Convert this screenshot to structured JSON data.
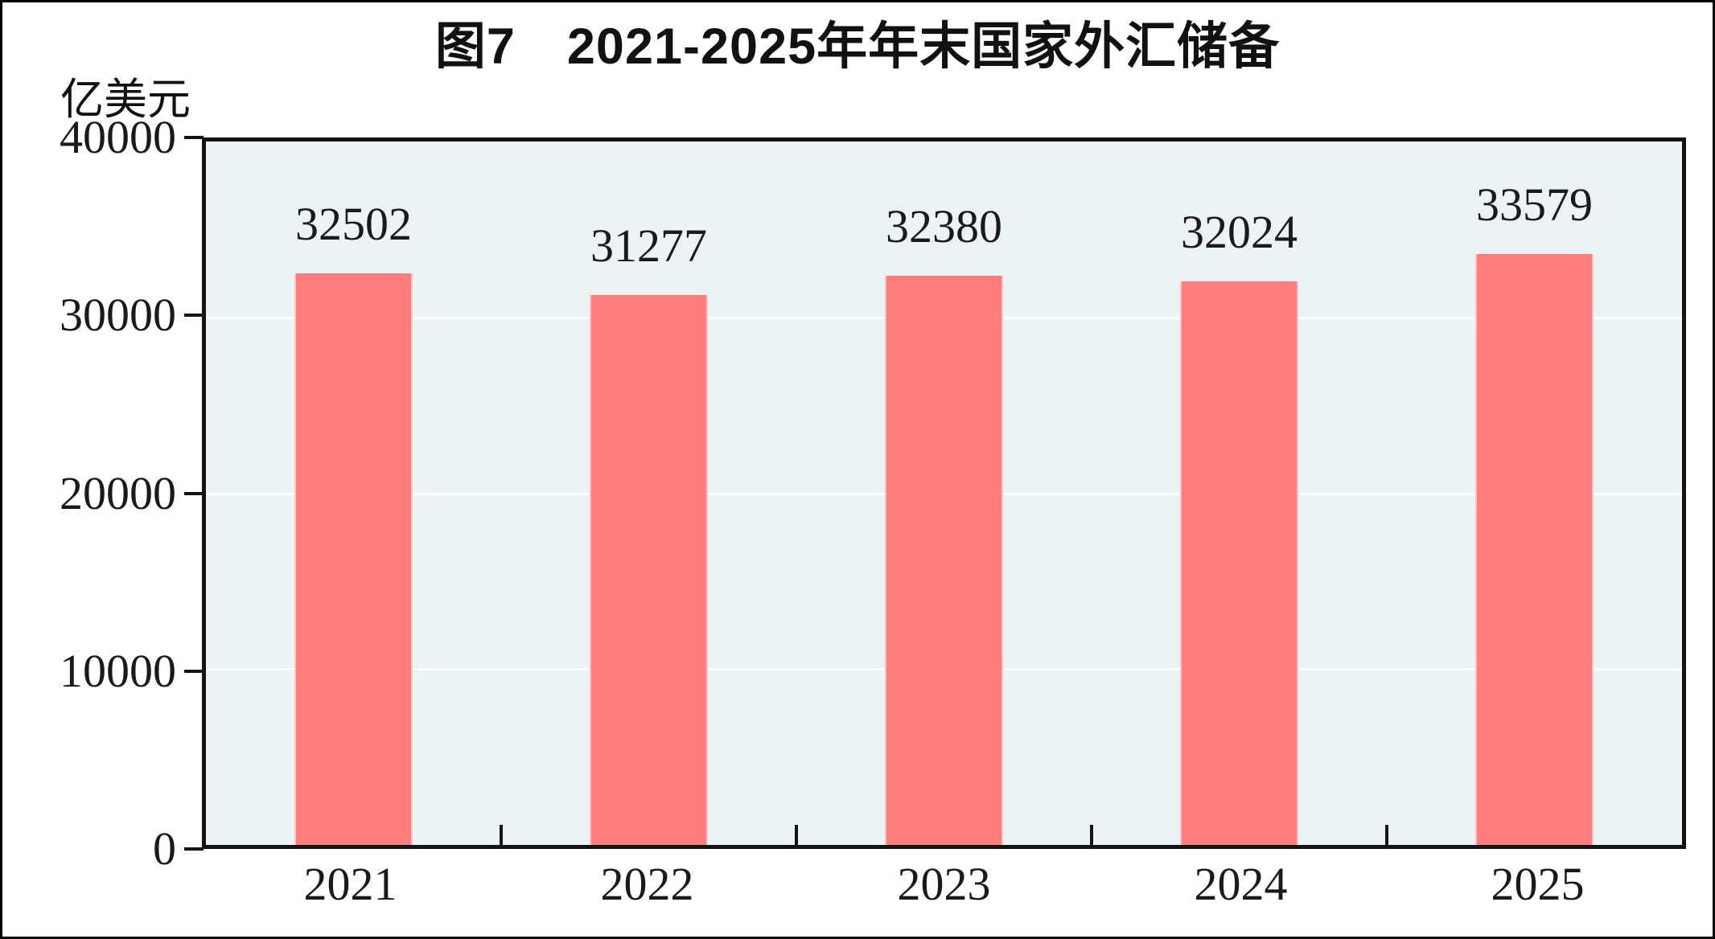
{
  "figure": {
    "title": "图7　2021-2025年年末国家外汇储备",
    "unit_label": "亿美元"
  },
  "colors": {
    "bar": "#FD7E7C",
    "plot_background": "#ECF3F7",
    "gridline": "#FFFFFF",
    "frame": "#141414",
    "text": "#1A1A1A"
  },
  "chart_data": {
    "type": "bar",
    "categories": [
      "2021",
      "2022",
      "2023",
      "2024",
      "2025"
    ],
    "values": [
      32502,
      31277,
      32380,
      32024,
      33579
    ],
    "data_labels": [
      "32502",
      "31277",
      "32380",
      "32024",
      "33579"
    ],
    "title": "图7　2021-2025年年末国家外汇储备",
    "xlabel": "",
    "ylabel": "亿美元",
    "ylim": [
      0,
      40000
    ],
    "yticks": [
      0,
      10000,
      20000,
      30000,
      40000
    ],
    "grid": "horizontal-major",
    "legend_position": "none",
    "bar_color": "#FD7E7C",
    "plot_background": "#ECF3F7"
  }
}
